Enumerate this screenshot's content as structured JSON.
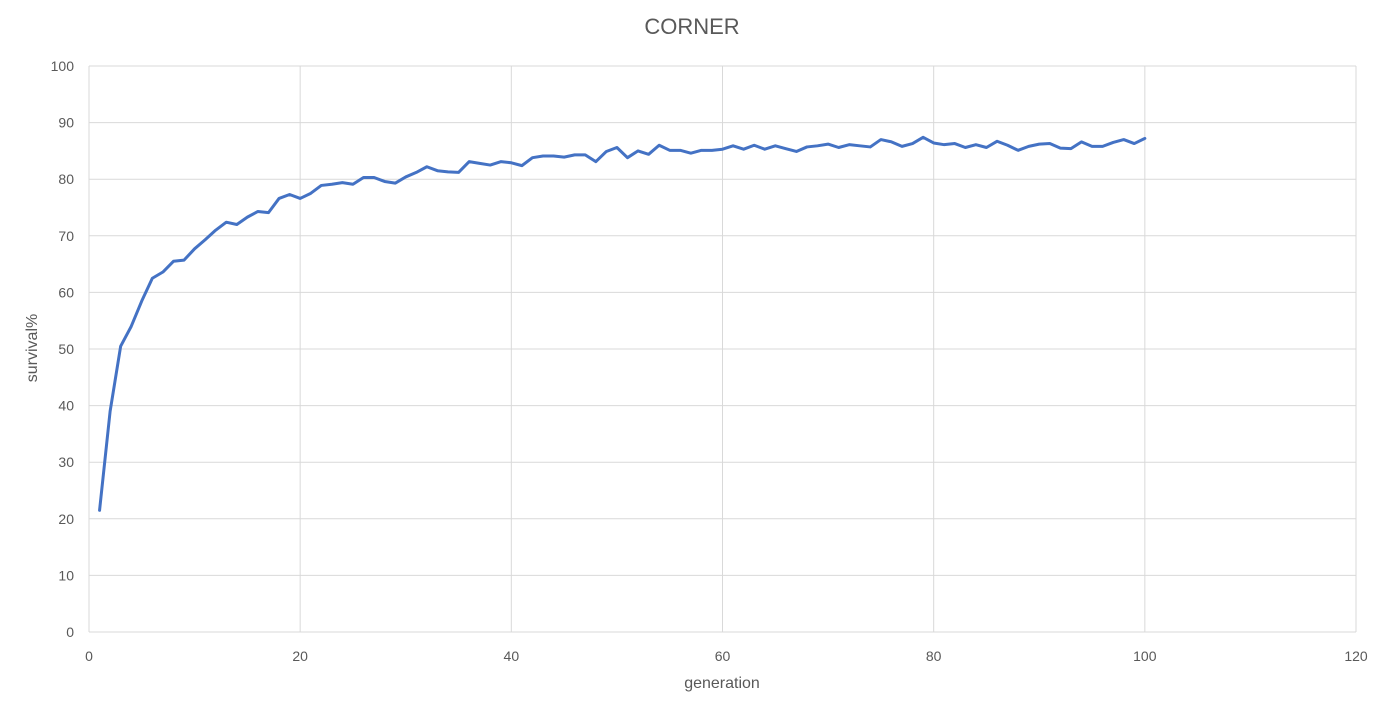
{
  "chart_data": {
    "type": "line",
    "title": "CORNER",
    "xlabel": "generation",
    "ylabel": "survival%",
    "xlim": [
      0,
      120
    ],
    "ylim": [
      0,
      100
    ],
    "x_ticks": [
      0,
      20,
      40,
      60,
      80,
      100,
      120
    ],
    "y_ticks": [
      0,
      10,
      20,
      30,
      40,
      50,
      60,
      70,
      80,
      90,
      100
    ],
    "grid": true,
    "legend": "none",
    "series": [
      {
        "color": "#4472c4",
        "x": [
          1,
          2,
          3,
          4,
          5,
          6,
          7,
          8,
          9,
          10,
          11,
          12,
          13,
          14,
          15,
          16,
          17,
          18,
          19,
          20,
          21,
          22,
          23,
          24,
          25,
          26,
          27,
          28,
          29,
          30,
          31,
          32,
          33,
          34,
          35,
          36,
          37,
          38,
          39,
          40,
          41,
          42,
          43,
          44,
          45,
          46,
          47,
          48,
          49,
          50,
          51,
          52,
          53,
          54,
          55,
          56,
          57,
          58,
          59,
          60,
          61,
          62,
          63,
          64,
          65,
          66,
          67,
          68,
          69,
          70,
          71,
          72,
          73,
          74,
          75,
          76,
          77,
          78,
          79,
          80,
          81,
          82,
          83,
          84,
          85,
          86,
          87,
          88,
          89,
          90,
          91,
          92,
          93,
          94,
          95,
          96,
          97,
          98,
          99,
          100
        ],
        "y": [
          21.5,
          39,
          50.5,
          54,
          58.5,
          62.5,
          63.6,
          65.5,
          65.7,
          67.7,
          69.3,
          71,
          72.4,
          72,
          73.3,
          74.3,
          74.1,
          76.6,
          77.3,
          76.6,
          77.5,
          78.9,
          79.1,
          79.4,
          79.1,
          80.3,
          80.3,
          79.6,
          79.3,
          80.4,
          81.2,
          82.2,
          81.5,
          81.3,
          81.2,
          83.1,
          82.8,
          82.5,
          83.1,
          82.9,
          82.4,
          83.8,
          84.1,
          84.1,
          83.9,
          84.3,
          84.3,
          83.1,
          84.9,
          85.6,
          83.8,
          85,
          84.4,
          86,
          85.1,
          85.1,
          84.6,
          85.1,
          85.1,
          85.3,
          85.9,
          85.3,
          86,
          85.3,
          85.9,
          85.4,
          84.9,
          85.7,
          85.9,
          86.2,
          85.6,
          86.1,
          85.9,
          85.7,
          87,
          86.6,
          85.8,
          86.3,
          87.4,
          86.4,
          86.1,
          86.3,
          85.6,
          86.1,
          85.6,
          86.7,
          86,
          85.1,
          85.8,
          86.2,
          86.3,
          85.5,
          85.4,
          86.6,
          85.8,
          85.8,
          86.5,
          87,
          86.3,
          87.2
        ]
      }
    ]
  }
}
